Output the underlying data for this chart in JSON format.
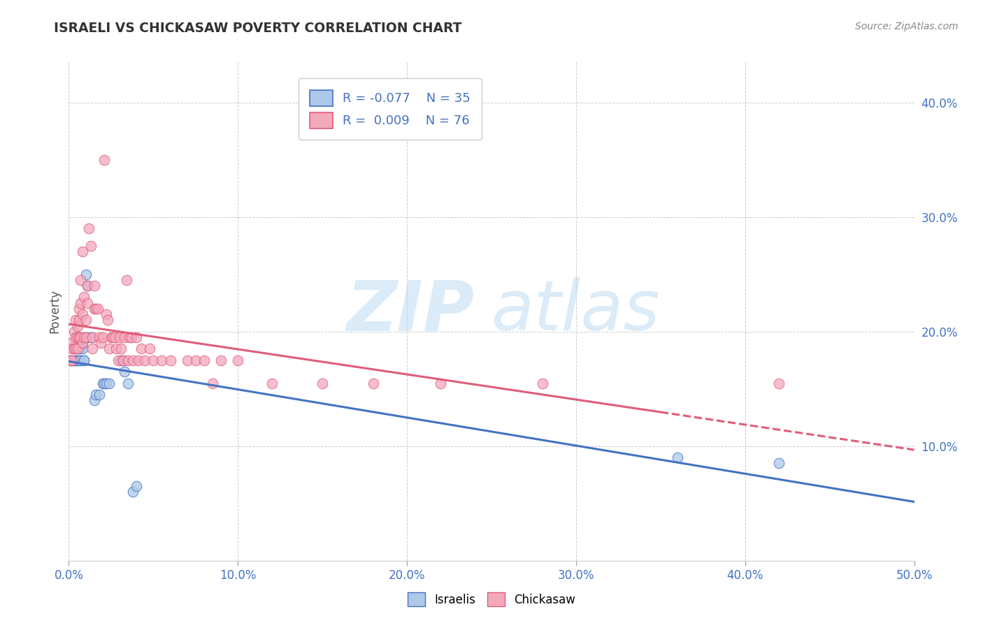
{
  "title": "ISRAELI VS CHICKASAW POVERTY CORRELATION CHART",
  "source": "Source: ZipAtlas.com",
  "ylabel": "Poverty",
  "xlim": [
    0.0,
    0.5
  ],
  "ylim": [
    0.0,
    0.435
  ],
  "yticks": [
    0.1,
    0.2,
    0.3,
    0.4
  ],
  "xticks": [
    0.0,
    0.1,
    0.2,
    0.3,
    0.4,
    0.5
  ],
  "r_israeli": -0.077,
  "n_israeli": 35,
  "r_chickasaw": 0.009,
  "n_chickasaw": 76,
  "israeli_color": "#adc8e8",
  "chickasaw_color": "#f4a8bc",
  "israeli_line_color": "#4472c4",
  "chickasaw_line_color": "#e05c7a",
  "watermark_zip": "ZIP",
  "watermark_atlas": "atlas",
  "background_color": "#ffffff",
  "grid_color": "#c8c8c8",
  "israeli_points": [
    [
      0.001,
      0.175
    ],
    [
      0.002,
      0.175
    ],
    [
      0.003,
      0.175
    ],
    [
      0.004,
      0.175
    ],
    [
      0.004,
      0.185
    ],
    [
      0.005,
      0.175
    ],
    [
      0.005,
      0.185
    ],
    [
      0.006,
      0.185
    ],
    [
      0.006,
      0.175
    ],
    [
      0.007,
      0.175
    ],
    [
      0.007,
      0.185
    ],
    [
      0.007,
      0.19
    ],
    [
      0.008,
      0.185
    ],
    [
      0.008,
      0.19
    ],
    [
      0.009,
      0.175
    ],
    [
      0.009,
      0.175
    ],
    [
      0.01,
      0.195
    ],
    [
      0.01,
      0.25
    ],
    [
      0.011,
      0.24
    ],
    [
      0.013,
      0.195
    ],
    [
      0.015,
      0.14
    ],
    [
      0.016,
      0.145
    ],
    [
      0.018,
      0.145
    ],
    [
      0.02,
      0.155
    ],
    [
      0.021,
      0.155
    ],
    [
      0.022,
      0.155
    ],
    [
      0.024,
      0.155
    ],
    [
      0.031,
      0.175
    ],
    [
      0.032,
      0.175
    ],
    [
      0.033,
      0.165
    ],
    [
      0.035,
      0.155
    ],
    [
      0.038,
      0.06
    ],
    [
      0.04,
      0.065
    ],
    [
      0.36,
      0.09
    ],
    [
      0.42,
      0.085
    ]
  ],
  "chickasaw_points": [
    [
      0.001,
      0.19
    ],
    [
      0.001,
      0.175
    ],
    [
      0.002,
      0.175
    ],
    [
      0.002,
      0.185
    ],
    [
      0.003,
      0.2
    ],
    [
      0.003,
      0.185
    ],
    [
      0.004,
      0.195
    ],
    [
      0.004,
      0.21
    ],
    [
      0.004,
      0.185
    ],
    [
      0.005,
      0.195
    ],
    [
      0.005,
      0.185
    ],
    [
      0.005,
      0.205
    ],
    [
      0.006,
      0.21
    ],
    [
      0.006,
      0.22
    ],
    [
      0.006,
      0.195
    ],
    [
      0.007,
      0.245
    ],
    [
      0.007,
      0.225
    ],
    [
      0.007,
      0.195
    ],
    [
      0.008,
      0.215
    ],
    [
      0.008,
      0.27
    ],
    [
      0.008,
      0.19
    ],
    [
      0.009,
      0.23
    ],
    [
      0.009,
      0.195
    ],
    [
      0.01,
      0.195
    ],
    [
      0.01,
      0.21
    ],
    [
      0.011,
      0.24
    ],
    [
      0.011,
      0.225
    ],
    [
      0.012,
      0.29
    ],
    [
      0.013,
      0.275
    ],
    [
      0.014,
      0.195
    ],
    [
      0.014,
      0.185
    ],
    [
      0.015,
      0.22
    ],
    [
      0.015,
      0.24
    ],
    [
      0.016,
      0.22
    ],
    [
      0.017,
      0.22
    ],
    [
      0.018,
      0.195
    ],
    [
      0.019,
      0.19
    ],
    [
      0.02,
      0.195
    ],
    [
      0.021,
      0.35
    ],
    [
      0.022,
      0.215
    ],
    [
      0.023,
      0.21
    ],
    [
      0.024,
      0.185
    ],
    [
      0.025,
      0.195
    ],
    [
      0.026,
      0.195
    ],
    [
      0.027,
      0.195
    ],
    [
      0.028,
      0.185
    ],
    [
      0.029,
      0.175
    ],
    [
      0.03,
      0.195
    ],
    [
      0.031,
      0.185
    ],
    [
      0.032,
      0.175
    ],
    [
      0.033,
      0.195
    ],
    [
      0.034,
      0.245
    ],
    [
      0.035,
      0.175
    ],
    [
      0.036,
      0.195
    ],
    [
      0.037,
      0.195
    ],
    [
      0.038,
      0.175
    ],
    [
      0.04,
      0.195
    ],
    [
      0.041,
      0.175
    ],
    [
      0.043,
      0.185
    ],
    [
      0.045,
      0.175
    ],
    [
      0.048,
      0.185
    ],
    [
      0.05,
      0.175
    ],
    [
      0.055,
      0.175
    ],
    [
      0.06,
      0.175
    ],
    [
      0.07,
      0.175
    ],
    [
      0.075,
      0.175
    ],
    [
      0.08,
      0.175
    ],
    [
      0.085,
      0.155
    ],
    [
      0.09,
      0.175
    ],
    [
      0.1,
      0.175
    ],
    [
      0.12,
      0.155
    ],
    [
      0.15,
      0.155
    ],
    [
      0.18,
      0.155
    ],
    [
      0.22,
      0.155
    ],
    [
      0.28,
      0.155
    ],
    [
      0.42,
      0.155
    ]
  ]
}
